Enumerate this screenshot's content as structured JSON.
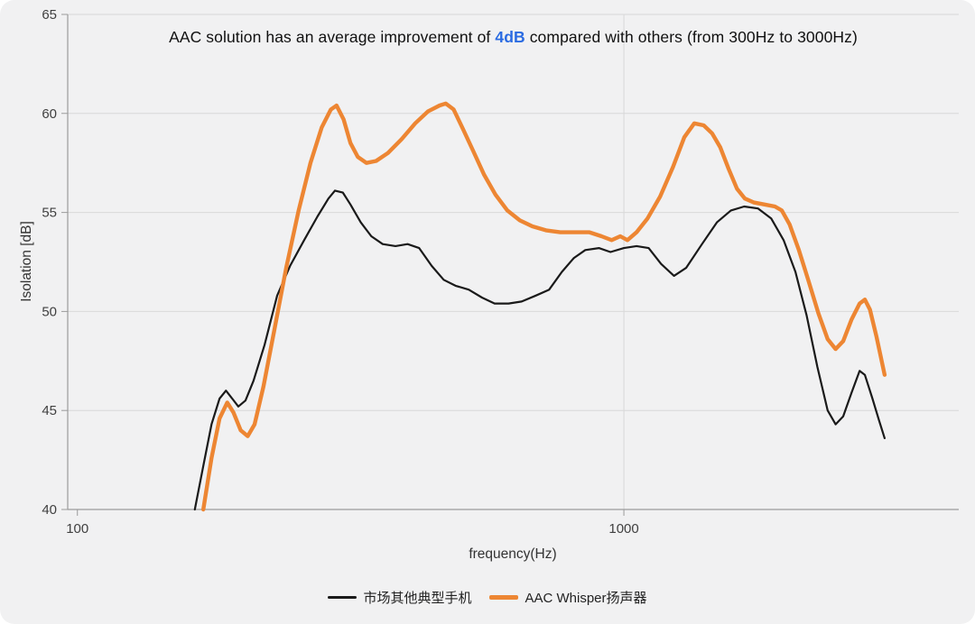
{
  "title": {
    "prefix": "AAC solution has an average improvement of ",
    "highlight": "4dB",
    "suffix": " compared with others (from 300Hz to 3000Hz)",
    "highlight_color": "#2A6BE2"
  },
  "axes": {
    "y_label": "Isolation [dB]",
    "x_label": "frequency(Hz)"
  },
  "legend": [
    {
      "label": "市场其他典型手机",
      "color": "#1a1a1a",
      "thickness": 2.5
    },
    {
      "label": "AAC Whisper扬声器",
      "color": "#ED8633",
      "thickness": 4.5
    }
  ],
  "colors": {
    "background": "#f1f1f2",
    "grid": "#d8d8d8",
    "axis": "#9b9b9b",
    "tick_text": "#404040",
    "series_black": "#1a1a1a",
    "series_orange": "#ED8633"
  },
  "chart_data": {
    "type": "line",
    "title": "AAC solution has an average improvement of 4dB compared with others (from 300Hz to 3000Hz)",
    "xlabel": "frequency(Hz)",
    "ylabel": "Isolation [dB]",
    "x_scale": "log",
    "xlim": [
      96,
      4100
    ],
    "ylim": [
      40,
      65
    ],
    "xticks": [
      100,
      1000
    ],
    "yticks": [
      40,
      45,
      50,
      55,
      60,
      65
    ],
    "grid": true,
    "legend_position": "bottom",
    "series": [
      {
        "name": "市场其他典型手机",
        "color": "#1a1a1a",
        "width": 2.2,
        "points": [
          [
            164,
            40
          ],
          [
            170,
            42.2
          ],
          [
            176,
            44.3
          ],
          [
            182,
            45.6
          ],
          [
            187,
            46.0
          ],
          [
            192,
            45.6
          ],
          [
            197,
            45.2
          ],
          [
            203,
            45.5
          ],
          [
            210,
            46.5
          ],
          [
            220,
            48.3
          ],
          [
            232,
            50.8
          ],
          [
            245,
            52.3
          ],
          [
            260,
            53.6
          ],
          [
            275,
            54.8
          ],
          [
            288,
            55.7
          ],
          [
            296,
            56.1
          ],
          [
            306,
            56.0
          ],
          [
            316,
            55.4
          ],
          [
            330,
            54.5
          ],
          [
            345,
            53.8
          ],
          [
            362,
            53.4
          ],
          [
            382,
            53.3
          ],
          [
            402,
            53.4
          ],
          [
            422,
            53.2
          ],
          [
            445,
            52.3
          ],
          [
            468,
            51.6
          ],
          [
            492,
            51.3
          ],
          [
            520,
            51.1
          ],
          [
            550,
            50.7
          ],
          [
            580,
            50.4
          ],
          [
            615,
            50.4
          ],
          [
            650,
            50.5
          ],
          [
            690,
            50.8
          ],
          [
            730,
            51.1
          ],
          [
            770,
            52.0
          ],
          [
            810,
            52.7
          ],
          [
            850,
            53.1
          ],
          [
            900,
            53.2
          ],
          [
            945,
            53.0
          ],
          [
            1000,
            53.2
          ],
          [
            1055,
            53.3
          ],
          [
            1110,
            53.2
          ],
          [
            1170,
            52.4
          ],
          [
            1235,
            51.8
          ],
          [
            1300,
            52.2
          ],
          [
            1390,
            53.4
          ],
          [
            1480,
            54.5
          ],
          [
            1570,
            55.1
          ],
          [
            1660,
            55.3
          ],
          [
            1760,
            55.2
          ],
          [
            1860,
            54.7
          ],
          [
            1960,
            53.6
          ],
          [
            2060,
            52.0
          ],
          [
            2160,
            49.8
          ],
          [
            2260,
            47.2
          ],
          [
            2360,
            45.0
          ],
          [
            2440,
            44.3
          ],
          [
            2520,
            44.7
          ],
          [
            2610,
            45.9
          ],
          [
            2700,
            47.0
          ],
          [
            2760,
            46.8
          ],
          [
            2850,
            45.6
          ],
          [
            2930,
            44.5
          ],
          [
            3000,
            43.6
          ]
        ]
      },
      {
        "name": "AAC Whisper扬声器",
        "color": "#ED8633",
        "width": 4.4,
        "points": [
          [
            170,
            40
          ],
          [
            176,
            42.6
          ],
          [
            182,
            44.6
          ],
          [
            188,
            45.4
          ],
          [
            193,
            44.9
          ],
          [
            199,
            44.0
          ],
          [
            205,
            43.7
          ],
          [
            211,
            44.3
          ],
          [
            219,
            46.2
          ],
          [
            229,
            49.0
          ],
          [
            241,
            52.2
          ],
          [
            254,
            55.1
          ],
          [
            267,
            57.5
          ],
          [
            280,
            59.3
          ],
          [
            291,
            60.2
          ],
          [
            298,
            60.4
          ],
          [
            307,
            59.7
          ],
          [
            316,
            58.5
          ],
          [
            326,
            57.8
          ],
          [
            338,
            57.5
          ],
          [
            352,
            57.6
          ],
          [
            370,
            58.0
          ],
          [
            392,
            58.7
          ],
          [
            415,
            59.5
          ],
          [
            438,
            60.1
          ],
          [
            460,
            60.4
          ],
          [
            472,
            60.5
          ],
          [
            488,
            60.2
          ],
          [
            508,
            59.2
          ],
          [
            530,
            58.1
          ],
          [
            555,
            56.9
          ],
          [
            582,
            55.9
          ],
          [
            612,
            55.1
          ],
          [
            645,
            54.6
          ],
          [
            680,
            54.3
          ],
          [
            720,
            54.1
          ],
          [
            765,
            54.0
          ],
          [
            815,
            54.0
          ],
          [
            865,
            54.0
          ],
          [
            910,
            53.8
          ],
          [
            950,
            53.6
          ],
          [
            985,
            53.8
          ],
          [
            1015,
            53.6
          ],
          [
            1055,
            54.0
          ],
          [
            1105,
            54.7
          ],
          [
            1165,
            55.8
          ],
          [
            1230,
            57.3
          ],
          [
            1290,
            58.8
          ],
          [
            1345,
            59.5
          ],
          [
            1400,
            59.4
          ],
          [
            1450,
            59.0
          ],
          [
            1500,
            58.3
          ],
          [
            1555,
            57.2
          ],
          [
            1610,
            56.2
          ],
          [
            1665,
            55.7
          ],
          [
            1730,
            55.5
          ],
          [
            1810,
            55.4
          ],
          [
            1890,
            55.3
          ],
          [
            1945,
            55.1
          ],
          [
            2010,
            54.4
          ],
          [
            2090,
            53.1
          ],
          [
            2180,
            51.5
          ],
          [
            2270,
            49.9
          ],
          [
            2360,
            48.6
          ],
          [
            2440,
            48.1
          ],
          [
            2520,
            48.5
          ],
          [
            2610,
            49.6
          ],
          [
            2700,
            50.4
          ],
          [
            2760,
            50.6
          ],
          [
            2820,
            50.1
          ],
          [
            2900,
            48.7
          ],
          [
            3000,
            46.8
          ]
        ]
      }
    ]
  }
}
